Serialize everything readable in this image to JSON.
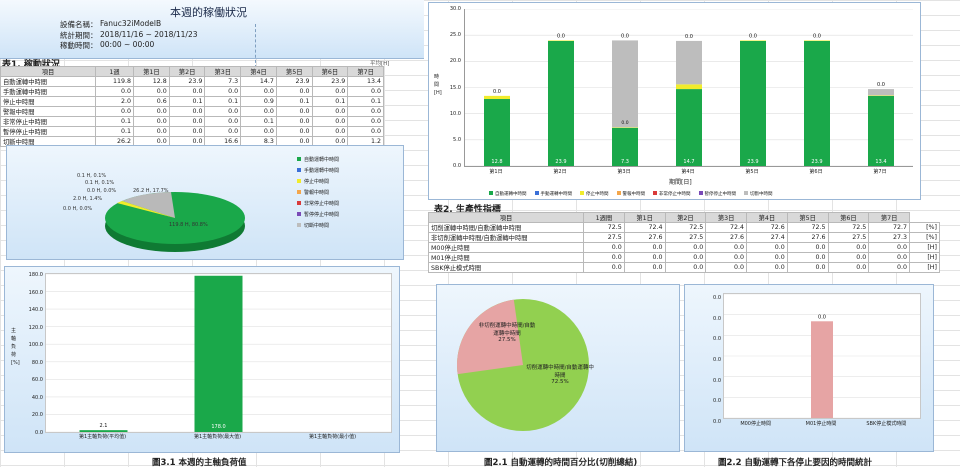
{
  "header": {
    "title": "本週的稼働狀況",
    "device_label": "設備名稱：",
    "device": "Fanuc32iModelB",
    "period_label": "統計期間：",
    "period": "2018/11/16 ~ 2018/11/23",
    "runtime_label": "稼動時間：",
    "runtime": "00:00 ~ 00:00"
  },
  "table1": {
    "title": "表1. 稼動狀況",
    "avg_label": "平均[H]",
    "columns": [
      "項目",
      "1週",
      "第1日",
      "第2日",
      "第3日",
      "第4日",
      "第5日",
      "第6日",
      "第7日"
    ],
    "rows": [
      [
        "自動運轉中時間",
        "119.8",
        "12.8",
        "23.9",
        "7.3",
        "14.7",
        "23.9",
        "23.9",
        "13.4"
      ],
      [
        "手動運轉中時間",
        "0.0",
        "0.0",
        "0.0",
        "0.0",
        "0.0",
        "0.0",
        "0.0",
        "0.0"
      ],
      [
        "停止中時間",
        "2.0",
        "0.6",
        "0.1",
        "0.1",
        "0.9",
        "0.1",
        "0.1",
        "0.1"
      ],
      [
        "警報中時間",
        "0.0",
        "0.0",
        "0.0",
        "0.0",
        "0.0",
        "0.0",
        "0.0",
        "0.0"
      ],
      [
        "非常停止中時間",
        "0.1",
        "0.0",
        "0.0",
        "0.0",
        "0.1",
        "0.0",
        "0.0",
        "0.0"
      ],
      [
        "暫停停止中時間",
        "0.1",
        "0.0",
        "0.0",
        "0.0",
        "0.0",
        "0.0",
        "0.0",
        "0.0"
      ],
      [
        "切斷中時間",
        "26.2",
        "0.0",
        "0.0",
        "16.6",
        "8.3",
        "0.0",
        "0.0",
        "1.2"
      ]
    ]
  },
  "pie1": {
    "labels": [
      "119.8 H, 80.8%",
      "26.2 H, 17.7%",
      "0.1 H, 0.1%",
      "0.1 H, 0.1%",
      "0.0 H, 0.0%",
      "2.0 H, 1.4%",
      "0.0 H, 0.0%"
    ],
    "legend": [
      "自動運轉中時間",
      "手動運轉中時間",
      "停止中時間",
      "警報中時間",
      "非常停止中時間",
      "暫停停止中時間",
      "切斷中時間"
    ],
    "colors": [
      "#1aa84a",
      "#3a6fd8",
      "#f1ec2c",
      "#f4a64a",
      "#d93a3a",
      "#7a4ab7",
      "#bdbdbd"
    ]
  },
  "chart3": {
    "caption": "圖3.1 本週的主軸負荷值",
    "ylabel_chars": [
      "主",
      "軸",
      "負",
      "荷",
      "[%]"
    ],
    "yticks": [
      "180.0",
      "160.0",
      "140.0",
      "120.0",
      "100.0",
      "80.0",
      "60.0",
      "40.0",
      "20.0",
      "0.0"
    ],
    "categories": [
      "第1主軸負荷(平均值)",
      "第1主軸負荷(最大值)",
      "第1主軸負荷(最小值)"
    ]
  },
  "chart1": {
    "yticks": [
      "30.0",
      "25.0",
      "20.0",
      "15.0",
      "10.0",
      "5.0",
      "0.0"
    ],
    "ylabel_chars": [
      "時",
      "間",
      "[H]"
    ],
    "xlabel": "期間[日]",
    "categories": [
      "第1日",
      "第2日",
      "第3日",
      "第4日",
      "第5日",
      "第6日",
      "第7日"
    ],
    "green_labels": [
      "12.8",
      "23.9",
      "7.3",
      "14.7",
      "23.9",
      "23.9",
      "13.4"
    ],
    "top_labels": [
      "0.0",
      "0.0",
      "0.0",
      "0.0",
      "0.0",
      "0.0",
      "0.0"
    ],
    "mid_label": "0.0",
    "legend": [
      "自動運轉中時間",
      "手動運轉中時間",
      "停止中時間",
      "警報中時間",
      "非常停止中時間",
      "暫停停止中時間",
      "切斷中時間"
    ],
    "legend_colors": [
      "#1aa84a",
      "#3a6fd8",
      "#f1ec2c",
      "#f4a64a",
      "#d93a3a",
      "#7a4ab7",
      "#bdbdbd"
    ]
  },
  "table2": {
    "title": "表2. 生產性指標",
    "avg_label": "平均",
    "columns": [
      "項目",
      "1週間",
      "第1日",
      "第2日",
      "第3日",
      "第4日",
      "第5日",
      "第6日",
      "第7日"
    ],
    "rows": [
      [
        "切削運轉中時間/自動運轉中時間",
        "72.5",
        "72.4",
        "72.5",
        "72.4",
        "72.6",
        "72.5",
        "72.5",
        "72.7",
        "[%]"
      ],
      [
        "非切削運轉中時間/自動運轉中時間",
        "27.5",
        "27.6",
        "27.5",
        "27.6",
        "27.4",
        "27.6",
        "27.5",
        "27.3",
        "[%]"
      ],
      [
        "M00停止時間",
        "0.0",
        "0.0",
        "0.0",
        "0.0",
        "0.0",
        "0.0",
        "0.0",
        "0.0",
        "[H]"
      ],
      [
        "M01停止時間",
        "0.0",
        "0.0",
        "0.0",
        "0.0",
        "0.0",
        "0.0",
        "0.0",
        "0.0",
        "[H]"
      ],
      [
        "SBK停止模式時間",
        "0.0",
        "0.0",
        "0.0",
        "0.0",
        "0.0",
        "0.0",
        "0.0",
        "0.0",
        "[H]"
      ]
    ]
  },
  "chart21": {
    "caption": "圖2.1 自動運轉的時間百分比(切削總結)",
    "slice_a": "切削運轉中時間/自動運轉中時間\n72.5%",
    "slice_b": "非切削運轉中時間/自動運轉中時間\n27.5%",
    "colors": [
      "#92d050",
      "#e6a4a4"
    ]
  },
  "chart22": {
    "caption": "圖2.2 自動運轉下各停止要因的時間統計",
    "yticks": [
      "0.0",
      "0.0",
      "0.0",
      "0.0",
      "0.0",
      "0.0",
      "0.0"
    ],
    "bar_label": "0.0",
    "categories": [
      "M00停止時間",
      "M01停止時間",
      "SBK停止模式時間"
    ]
  },
  "chart_data": [
    {
      "type": "pie",
      "series": [
        {
          "values": [
            119.8,
            0.0,
            2.0,
            0.0,
            0.1,
            0.1,
            26.2
          ]
        }
      ],
      "categories": [
        "自動運轉中時間",
        "手動運轉中時間",
        "停止中時間",
        "警報中時間",
        "非常停止中時間",
        "暫停停止中時間",
        "切斷中時間"
      ]
    },
    {
      "type": "bar",
      "categories": [
        "第1日",
        "第2日",
        "第3日",
        "第4日",
        "第5日",
        "第6日",
        "第7日"
      ],
      "series": [
        {
          "name": "自動運轉中時間",
          "values": [
            12.8,
            23.9,
            7.3,
            14.7,
            23.9,
            23.9,
            13.4
          ]
        },
        {
          "name": "停止中時間",
          "values": [
            0.6,
            0.1,
            0.1,
            0.9,
            0.1,
            0.1,
            0.1
          ]
        },
        {
          "name": "切斷中時間",
          "values": [
            0.0,
            0.0,
            16.6,
            8.3,
            0.0,
            0.0,
            1.2
          ]
        }
      ],
      "ylim": [
        0,
        30
      ],
      "xlabel": "期間[日]",
      "stacked": true
    },
    {
      "type": "bar",
      "categories": [
        "第1主軸負荷(平均值)",
        "第1主軸負荷(最大值)",
        "第1主軸負荷(最小值)"
      ],
      "values": [
        2.1,
        178.0,
        0.0
      ],
      "data_labels": [
        "2.1",
        "178.0",
        ""
      ],
      "ylim": [
        0,
        180
      ]
    },
    {
      "type": "pie",
      "categories": [
        "切削運轉中時間/自動運轉中時間",
        "非切削運轉中時間/自動運轉中時間"
      ],
      "values": [
        72.5,
        27.5
      ]
    },
    {
      "type": "bar",
      "categories": [
        "M00停止時間",
        "M01停止時間",
        "SBK停止模式時間"
      ],
      "values": [
        0.0,
        0.0,
        0.0
      ]
    }
  ]
}
